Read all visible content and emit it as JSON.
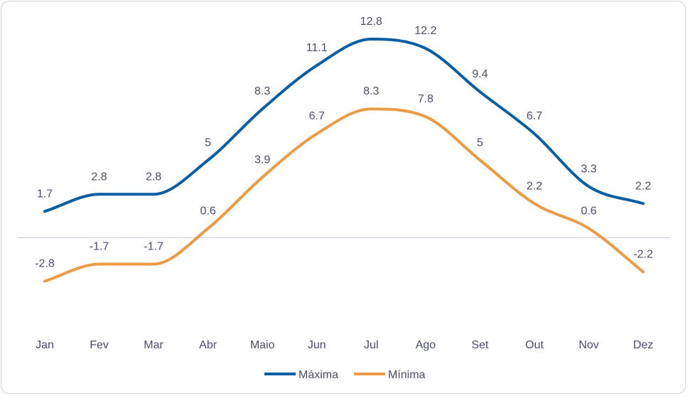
{
  "chart_data": {
    "type": "line",
    "categories": [
      "Jan",
      "Fev",
      "Mar",
      "Abr",
      "Maio",
      "Jun",
      "Jul",
      "Ago",
      "Set",
      "Out",
      "Nov",
      "Dez"
    ],
    "series": [
      {
        "name": "Máxima",
        "color": "#0a5ea6",
        "values": [
          1.7,
          2.8,
          2.8,
          5,
          8.3,
          11.1,
          12.8,
          12.2,
          9.4,
          6.7,
          3.3,
          2.2
        ],
        "labels": [
          "1.7",
          "2.8",
          "2.8",
          "5",
          "8.3",
          "11.1",
          "12.8",
          "12.2",
          "9.4",
          "6.7",
          "3.3",
          "2.2"
        ]
      },
      {
        "name": "Mínima",
        "color": "#ec9a45",
        "values": [
          -2.8,
          -1.7,
          -1.7,
          0.6,
          3.9,
          6.7,
          8.3,
          7.8,
          5,
          2.2,
          0.6,
          -2.2
        ],
        "labels": [
          "-2.8",
          "-1.7",
          "-1.7",
          "0.6",
          "3.9",
          "6.7",
          "8.3",
          "7.8",
          "5",
          "2.2",
          "0.6",
          "-2.2"
        ]
      }
    ],
    "title": "",
    "xlabel": "",
    "ylabel": "",
    "ylim": [
      -5.0,
      15.0
    ],
    "grid": false,
    "zero_line": true,
    "smooth": true,
    "legend_position": "bottom"
  }
}
